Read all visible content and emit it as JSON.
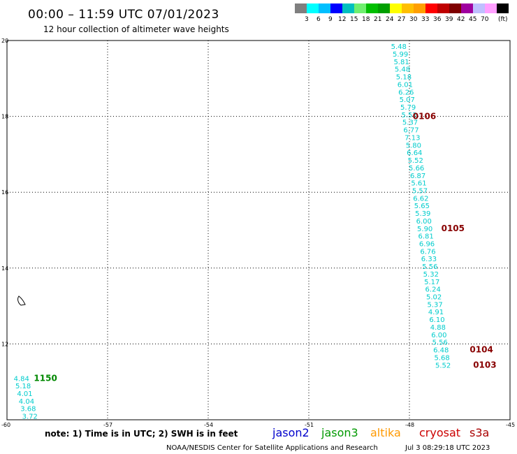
{
  "header": {
    "title": "00:00 – 11:59 UTC 07/01/2023",
    "subtitle": "12 hour collection of altimeter wave heights"
  },
  "colorbar": {
    "colors": [
      "#7f7f7f",
      "#00ffff",
      "#00bfff",
      "#0000ff",
      "#00bfbf",
      "#6fef6f",
      "#00bf00",
      "#009f00",
      "#ffff00",
      "#ffbf00",
      "#ff9f00",
      "#ff0000",
      "#bf0000",
      "#7f0000",
      "#9f009f",
      "#bfbfff",
      "#ff9fff",
      "#000000"
    ],
    "labels": [
      "3",
      "6",
      "9",
      "12",
      "15",
      "18",
      "21",
      "24",
      "27",
      "30",
      "33",
      "36",
      "39",
      "42",
      "45",
      "70",
      "(ft)"
    ]
  },
  "chart_data": {
    "type": "scatter",
    "xlim": [
      -60,
      -45
    ],
    "ylim": [
      10,
      20
    ],
    "x_ticks": [
      "-60",
      "-57",
      "-54",
      "-51",
      "-48",
      "-45"
    ],
    "y_ticks": [
      "10",
      "12",
      "14",
      "16",
      "18",
      "20"
    ],
    "grid": true,
    "legend": "bottom",
    "points": [
      {
        "x": -48.55,
        "y": 19.85,
        "label": "5.48"
      },
      {
        "x": -48.5,
        "y": 19.65,
        "label": "5.99"
      },
      {
        "x": -48.47,
        "y": 19.45,
        "label": "5.81"
      },
      {
        "x": -48.44,
        "y": 19.25,
        "label": "5.48"
      },
      {
        "x": -48.4,
        "y": 19.05,
        "label": "5.18"
      },
      {
        "x": -48.36,
        "y": 18.85,
        "label": "6.01"
      },
      {
        "x": -48.33,
        "y": 18.65,
        "label": "6.26"
      },
      {
        "x": -48.3,
        "y": 18.45,
        "label": "5.07"
      },
      {
        "x": -48.27,
        "y": 18.25,
        "label": "5.79"
      },
      {
        "x": -48.24,
        "y": 18.05,
        "label": "5.52"
      },
      {
        "x": -48.21,
        "y": 17.85,
        "label": "5.37"
      },
      {
        "x": -48.18,
        "y": 17.65,
        "label": "6.77"
      },
      {
        "x": -48.14,
        "y": 17.45,
        "label": "7.13"
      },
      {
        "x": -48.11,
        "y": 17.25,
        "label": "5.80"
      },
      {
        "x": -48.08,
        "y": 17.05,
        "label": "6.64"
      },
      {
        "x": -48.05,
        "y": 16.85,
        "label": "5.52"
      },
      {
        "x": -48.02,
        "y": 16.65,
        "label": "5.66"
      },
      {
        "x": -47.98,
        "y": 16.45,
        "label": "6.87"
      },
      {
        "x": -47.95,
        "y": 16.25,
        "label": "5.61"
      },
      {
        "x": -47.92,
        "y": 16.05,
        "label": "5.57"
      },
      {
        "x": -47.89,
        "y": 15.85,
        "label": "6.62"
      },
      {
        "x": -47.86,
        "y": 15.65,
        "label": "5.65"
      },
      {
        "x": -47.83,
        "y": 15.45,
        "label": "5.39"
      },
      {
        "x": -47.8,
        "y": 15.25,
        "label": "6.00"
      },
      {
        "x": -47.77,
        "y": 15.05,
        "label": "5.90"
      },
      {
        "x": -47.74,
        "y": 14.85,
        "label": "6.81"
      },
      {
        "x": -47.71,
        "y": 14.65,
        "label": "6.96"
      },
      {
        "x": -47.68,
        "y": 14.45,
        "label": "6.76"
      },
      {
        "x": -47.65,
        "y": 14.25,
        "label": "6.33"
      },
      {
        "x": -47.62,
        "y": 14.05,
        "label": "5.56"
      },
      {
        "x": -47.59,
        "y": 13.85,
        "label": "5.32"
      },
      {
        "x": -47.56,
        "y": 13.65,
        "label": "5.17"
      },
      {
        "x": -47.53,
        "y": 13.45,
        "label": "6.24"
      },
      {
        "x": -47.5,
        "y": 13.25,
        "label": "5.02"
      },
      {
        "x": -47.47,
        "y": 13.05,
        "label": "5.37"
      },
      {
        "x": -47.44,
        "y": 12.85,
        "label": "4.91"
      },
      {
        "x": -47.41,
        "y": 12.65,
        "label": "6.10"
      },
      {
        "x": -47.38,
        "y": 12.45,
        "label": "4.88"
      },
      {
        "x": -47.35,
        "y": 12.25,
        "label": "6.00"
      },
      {
        "x": -47.32,
        "y": 12.05,
        "label": "5.56"
      },
      {
        "x": -47.29,
        "y": 11.85,
        "label": "6.48"
      },
      {
        "x": -47.26,
        "y": 11.65,
        "label": "5.68"
      },
      {
        "x": -47.23,
        "y": 11.45,
        "label": "5.52"
      },
      {
        "x": -59.8,
        "y": 11.1,
        "label": "4.84"
      },
      {
        "x": -59.75,
        "y": 10.9,
        "label": "5.18"
      },
      {
        "x": -59.7,
        "y": 10.7,
        "label": "4.01"
      },
      {
        "x": -59.65,
        "y": 10.5,
        "label": "4.04"
      },
      {
        "x": -59.6,
        "y": 10.3,
        "label": "3.68"
      },
      {
        "x": -59.55,
        "y": 10.1,
        "label": "3.72"
      }
    ],
    "pass_times": [
      {
        "x": -47.9,
        "y": 18.0,
        "label": "0106",
        "satellite": "cryosat"
      },
      {
        "x": -47.05,
        "y": 15.05,
        "label": "0105",
        "satellite": "cryosat"
      },
      {
        "x": -46.2,
        "y": 11.85,
        "label": "0104",
        "satellite": "cryosat"
      },
      {
        "x": -46.1,
        "y": 11.45,
        "label": "0103",
        "satellite": "cryosat"
      },
      {
        "x": -59.2,
        "y": 11.1,
        "label": "1150",
        "satellite": "jason3"
      }
    ]
  },
  "note": "note: 1) Time is in UTC; 2) SWH is in feet",
  "legend": [
    {
      "name": "jason2",
      "color": "#0000cc"
    },
    {
      "name": "jason3",
      "color": "#009900"
    },
    {
      "name": "altika",
      "color": "#ff9900"
    },
    {
      "name": "cryosat",
      "color": "#cc0000"
    },
    {
      "name": "s3a",
      "color": "#aa0000"
    }
  ],
  "footer": {
    "credit": "NOAA/NESDIS Center for Satellite Applications and Research",
    "timestamp": "Jul  3 08:29:18 UTC 2023"
  },
  "colors": {
    "swh_text": "#00cccc",
    "pass_cryosat": "#880000",
    "pass_jason3": "#008800",
    "grid": "#000000"
  }
}
